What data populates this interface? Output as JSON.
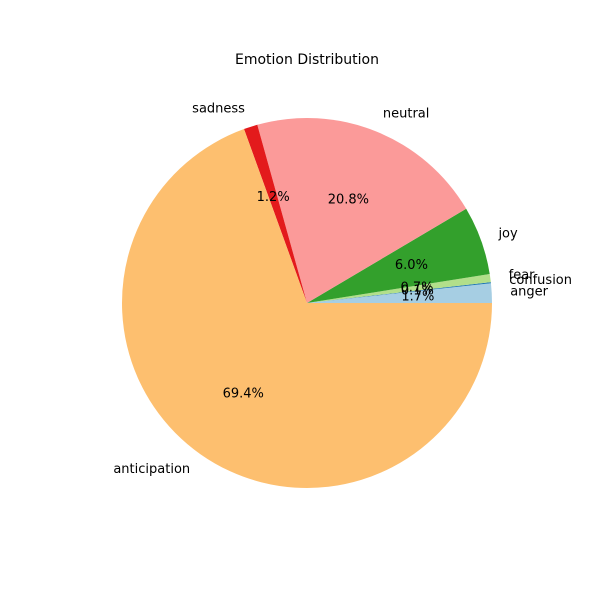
{
  "chart_data": {
    "type": "pie",
    "title": "Emotion Distribution",
    "start_angle_deg": 0,
    "direction": "counterclockwise",
    "slices": [
      {
        "label": "anger",
        "value": 1.7,
        "pct_label": "1.7%",
        "color": "#a6cee3"
      },
      {
        "label": "confusion",
        "value": 0.1,
        "pct_label": "0.1%",
        "color": "#1f78b4"
      },
      {
        "label": "fear",
        "value": 0.7,
        "pct_label": "0.7%",
        "color": "#b2df8a"
      },
      {
        "label": "joy",
        "value": 6.0,
        "pct_label": "6.0%",
        "color": "#33a02c"
      },
      {
        "label": "neutral",
        "value": 20.8,
        "pct_label": "20.8%",
        "color": "#fb9a99"
      },
      {
        "label": "sadness",
        "value": 1.2,
        "pct_label": "1.2%",
        "color": "#e31a1c"
      },
      {
        "label": "anticipation",
        "value": 69.4,
        "pct_label": "69.4%",
        "color": "#fdbf6f"
      }
    ]
  }
}
